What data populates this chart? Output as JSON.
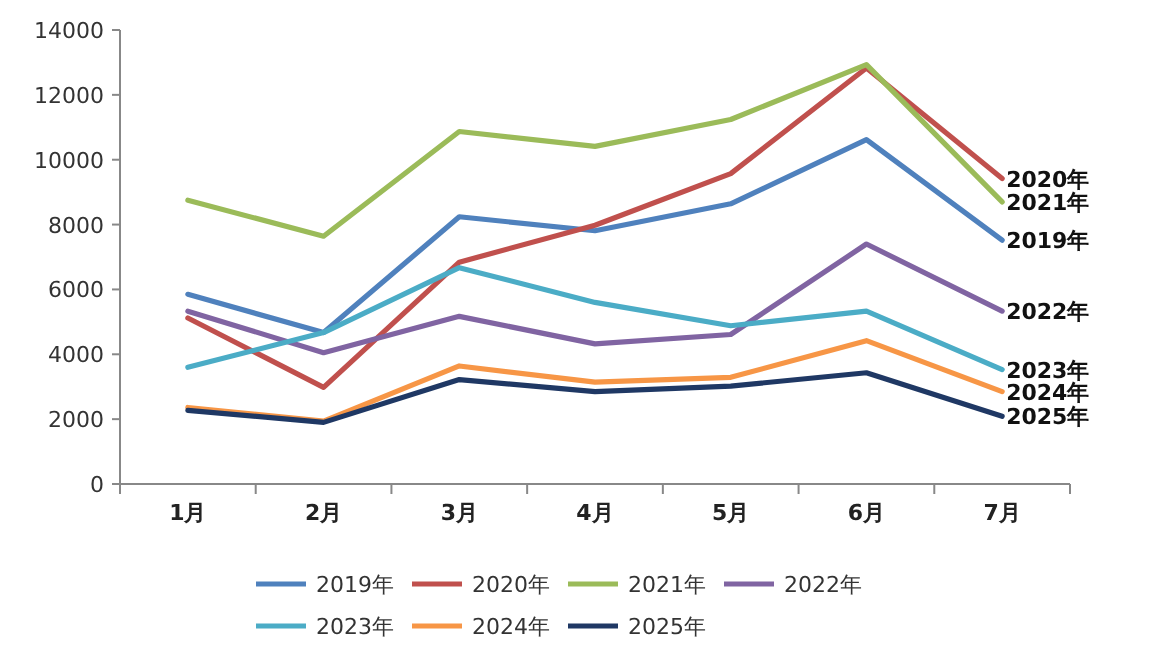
{
  "chart_data": {
    "type": "line",
    "categories": [
      "1月",
      "2月",
      "3月",
      "4月",
      "5月",
      "6月",
      "7月"
    ],
    "ylim": [
      0,
      14000
    ],
    "yticks": [
      0,
      2000,
      4000,
      6000,
      8000,
      10000,
      12000,
      14000
    ],
    "grid": false,
    "legend": "bottom",
    "marker": "none",
    "series": [
      {
        "name": "2019年",
        "color": "#4f81bd",
        "values": [
          5850,
          4670,
          8240,
          7810,
          8640,
          10620,
          7520
        ]
      },
      {
        "name": "2020年",
        "color": "#c0504d",
        "values": [
          5120,
          2980,
          6840,
          7980,
          9570,
          12830,
          9420
        ]
      },
      {
        "name": "2021年",
        "color": "#9bbb59",
        "values": [
          8750,
          7640,
          10870,
          10410,
          11240,
          12930,
          8700
        ]
      },
      {
        "name": "2022年",
        "color": "#8064a2",
        "values": [
          5330,
          4050,
          5170,
          4320,
          4610,
          7400,
          5330
        ]
      },
      {
        "name": "2023年",
        "color": "#4bacc6",
        "values": [
          3600,
          4670,
          6670,
          5600,
          4880,
          5330,
          3530
        ]
      },
      {
        "name": "2024年",
        "color": "#f79646",
        "values": [
          2360,
          1940,
          3640,
          3140,
          3290,
          4420,
          2850
        ]
      },
      {
        "name": "2025年",
        "color": "#1f3864",
        "values": [
          2270,
          1900,
          3220,
          2850,
          3020,
          3430,
          2090
        ]
      }
    ]
  }
}
